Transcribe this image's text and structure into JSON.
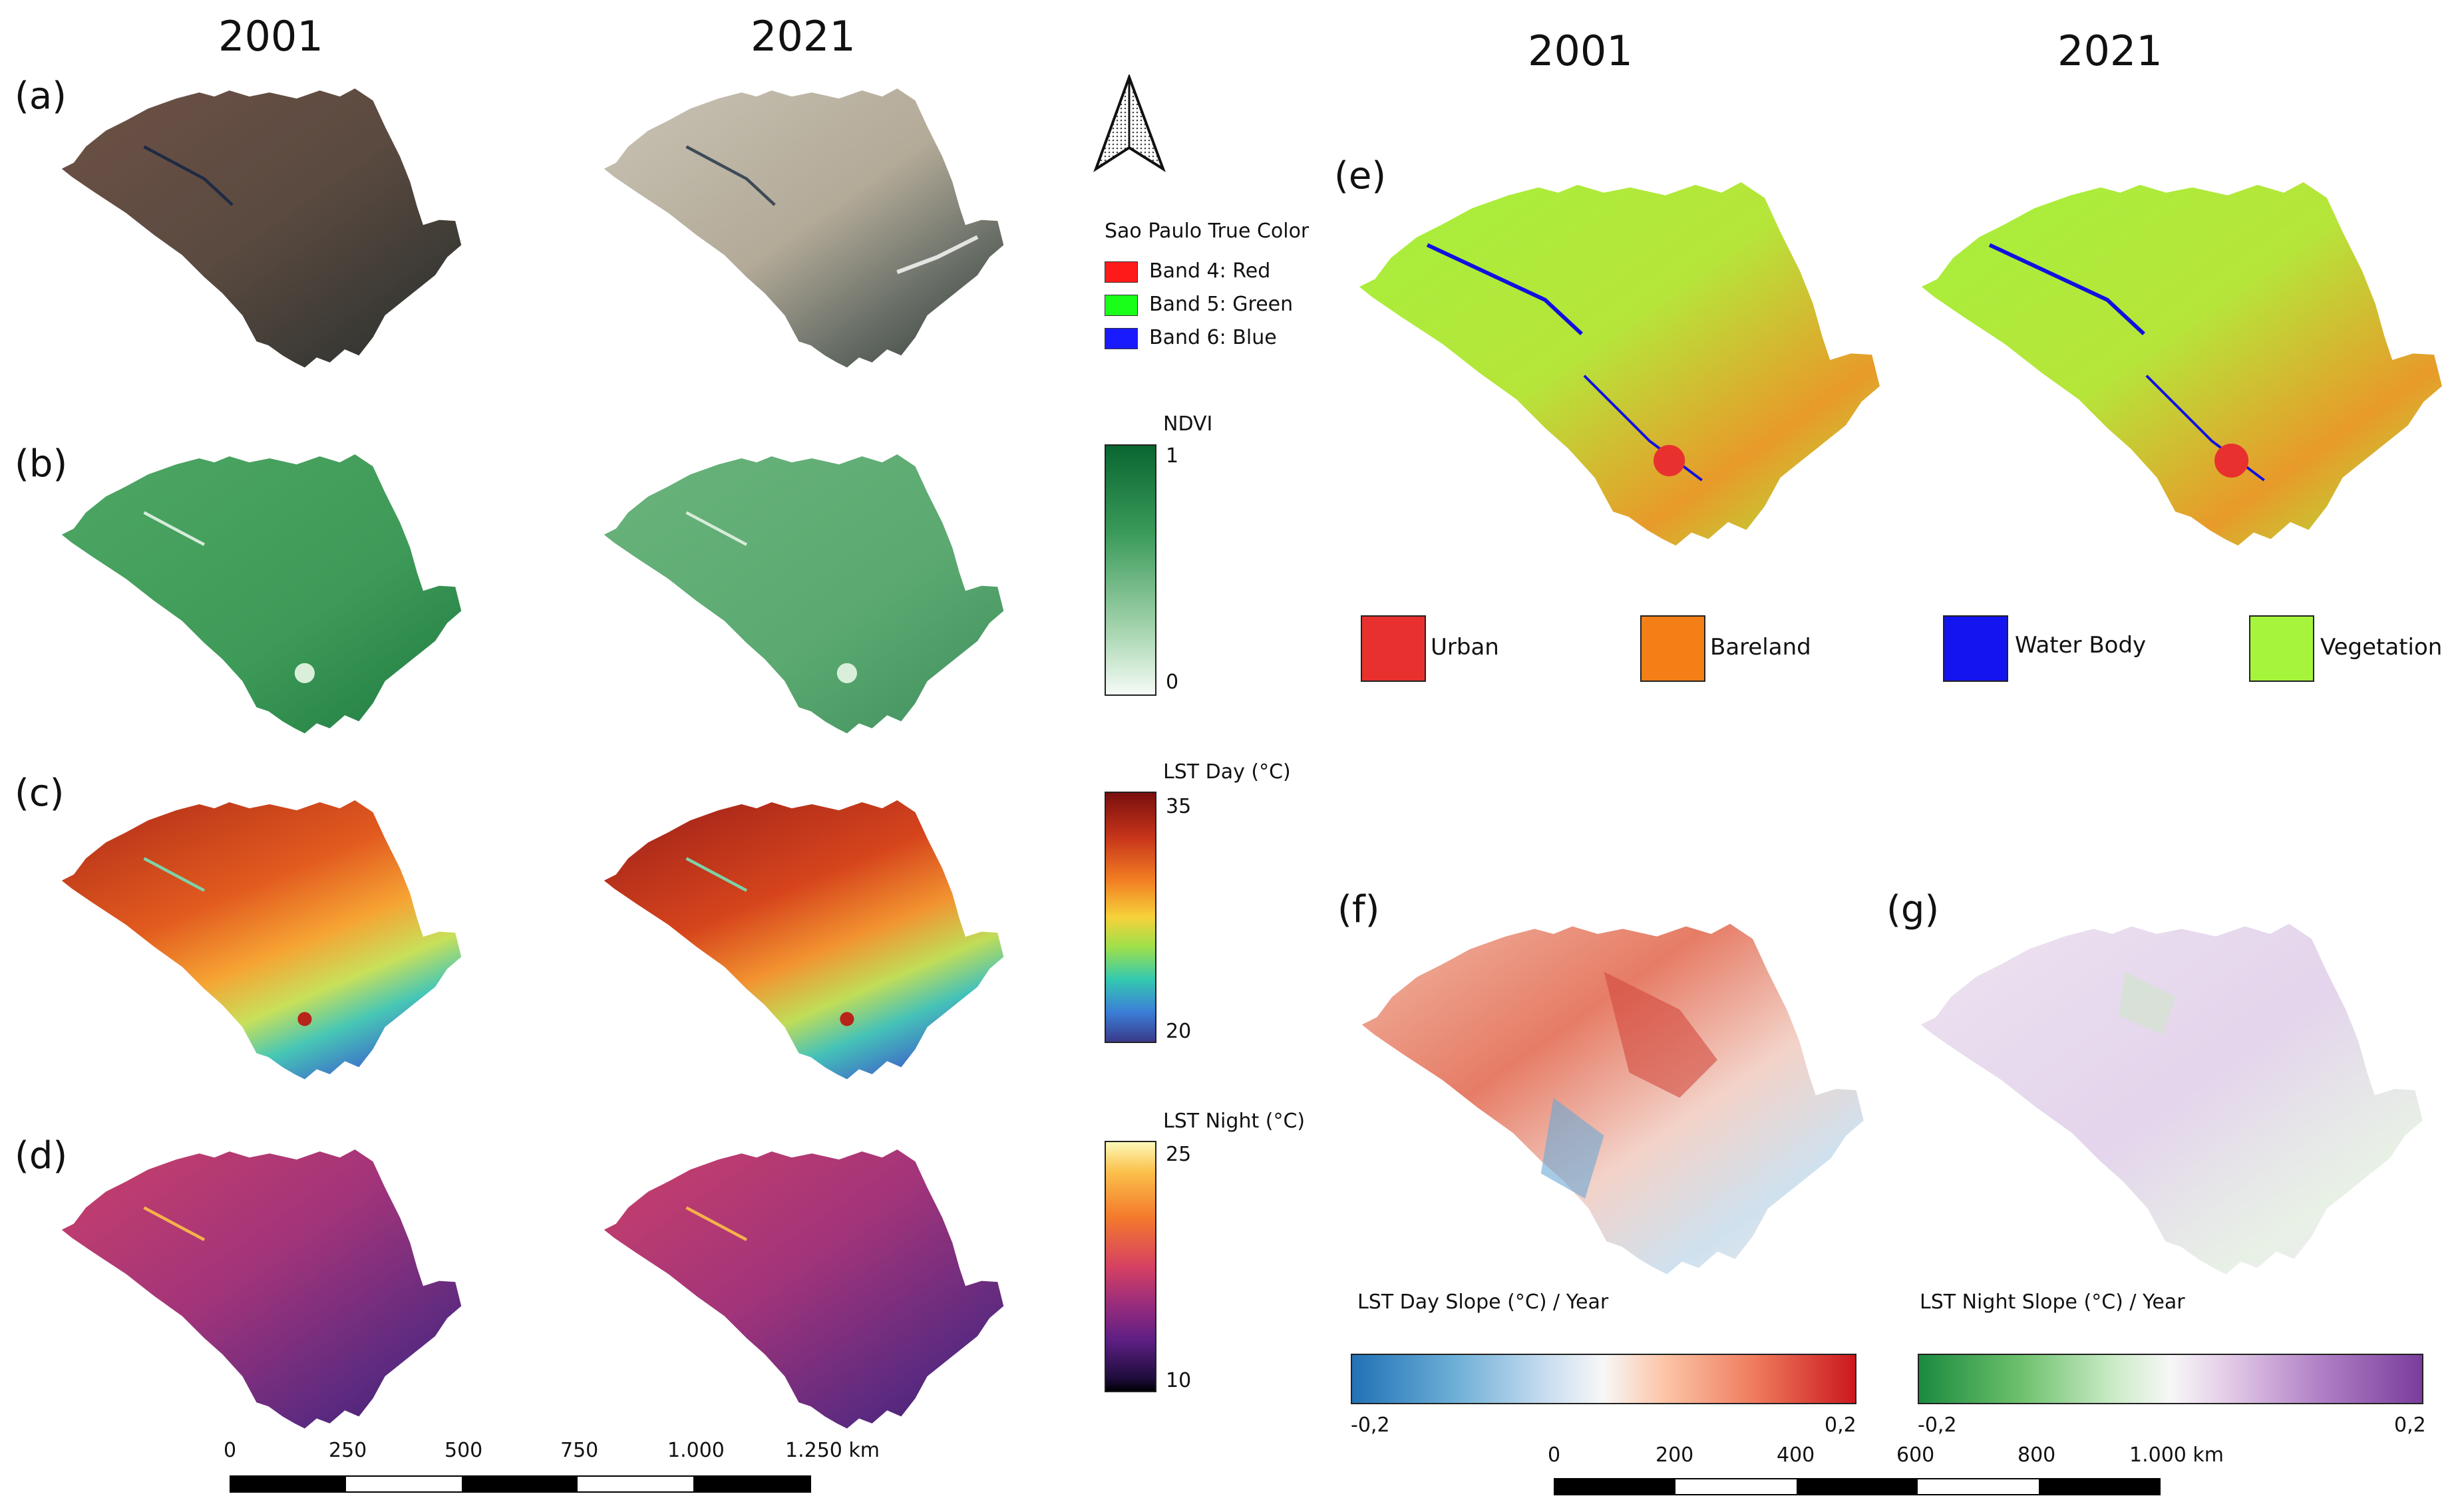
{
  "headers": {
    "left_2001": "2001",
    "left_2021": "2021",
    "right_2001": "2001",
    "right_2021": "2021"
  },
  "panels": {
    "a": "(a)",
    "b": "(b)",
    "c": "(c)",
    "d": "(d)",
    "e": "(e)",
    "f": "(f)",
    "g": "(g)"
  },
  "true_color_legend": {
    "title": "Sao Paulo True Color",
    "items": [
      {
        "label": "Band 4: Red",
        "color": "#ff1a1a"
      },
      {
        "label": "Band 5: Green",
        "color": "#1aff1a"
      },
      {
        "label": "Band 6: Blue",
        "color": "#1a1aff"
      }
    ]
  },
  "ndvi_legend": {
    "title": "NDVI",
    "max": "1",
    "min": "0"
  },
  "lst_day_legend": {
    "title": "LST Day (°C)",
    "max": "35",
    "min": "20"
  },
  "lst_night_legend": {
    "title": "LST Night (°C)",
    "max": "25",
    "min": "10"
  },
  "landcover_legend": [
    {
      "label": "Urban",
      "color": "#e8312e"
    },
    {
      "label": "Bareland",
      "color": "#f57f17"
    },
    {
      "label": "Water Body",
      "color": "#1414f0"
    },
    {
      "label": "Vegetation",
      "color": "#a6f53c"
    }
  ],
  "slope_day": {
    "title": "LST Day Slope (°C) / Year",
    "min": "-0,2",
    "max": "0,2"
  },
  "slope_night": {
    "title": "LST Night Slope (°C) / Year",
    "min": "-0,2",
    "max": "0,2"
  },
  "scale_left": {
    "ticks": [
      "0",
      "250",
      "500",
      "750",
      "1.000",
      "1.250 km"
    ]
  },
  "scale_right": {
    "ticks": [
      "0",
      "200",
      "400",
      "600",
      "800",
      "1.000 km"
    ]
  }
}
